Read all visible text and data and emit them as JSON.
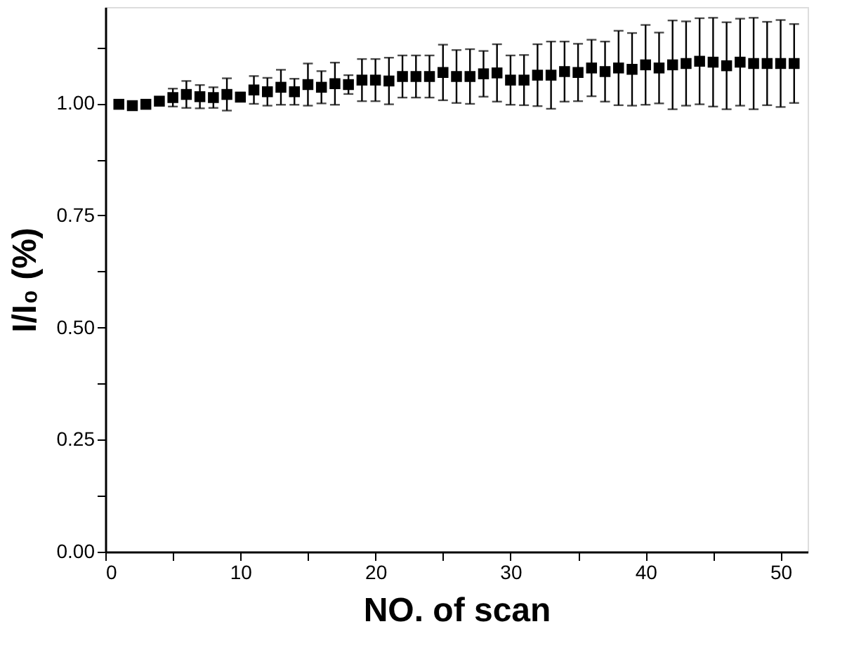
{
  "chart_data": {
    "type": "scatter",
    "xlabel": "NO. of scan",
    "ylabel": "I/I₀ (%)",
    "x": [
      1,
      2,
      3,
      4,
      5,
      6,
      7,
      8,
      9,
      10,
      11,
      12,
      13,
      14,
      15,
      16,
      17,
      18,
      19,
      20,
      21,
      22,
      23,
      24,
      25,
      26,
      27,
      28,
      29,
      30,
      31,
      32,
      33,
      34,
      35,
      36,
      37,
      38,
      39,
      40,
      41,
      42,
      43,
      44,
      45,
      46,
      47,
      48,
      49,
      50,
      51
    ],
    "values": [
      0.998,
      0.995,
      0.998,
      1.005,
      1.013,
      1.02,
      1.015,
      1.013,
      1.02,
      1.014,
      1.03,
      1.026,
      1.036,
      1.026,
      1.042,
      1.036,
      1.044,
      1.042,
      1.052,
      1.052,
      1.05,
      1.06,
      1.06,
      1.06,
      1.069,
      1.06,
      1.06,
      1.066,
      1.068,
      1.052,
      1.052,
      1.063,
      1.063,
      1.071,
      1.069,
      1.079,
      1.071,
      1.079,
      1.076,
      1.086,
      1.079,
      1.086,
      1.089,
      1.094,
      1.092,
      1.084,
      1.092,
      1.089,
      1.089,
      1.089,
      1.089
    ],
    "errors": [
      null,
      null,
      null,
      null,
      0.02,
      0.03,
      0.026,
      0.023,
      0.036,
      0.01,
      0.031,
      0.031,
      0.039,
      0.029,
      0.047,
      0.036,
      0.047,
      0.021,
      0.047,
      0.047,
      0.052,
      0.047,
      0.047,
      0.047,
      0.062,
      0.059,
      0.061,
      0.051,
      0.064,
      0.055,
      0.056,
      0.069,
      0.075,
      0.067,
      0.064,
      0.063,
      0.067,
      0.083,
      0.081,
      0.089,
      0.079,
      0.099,
      0.094,
      0.096,
      0.099,
      0.097,
      0.097,
      0.102,
      0.093,
      0.097,
      0.088
    ],
    "color": "#000000",
    "marker": "square",
    "xlim": [
      0,
      52
    ],
    "xticks": [
      0,
      {
        "value": 5,
        "label": null
      },
      10,
      {
        "value": 15,
        "label": null
      },
      20,
      {
        "value": 25,
        "label": null
      },
      30,
      {
        "value": 35,
        "label": null
      },
      40,
      {
        "value": 45,
        "label": null
      },
      50
    ],
    "ylim": [
      0,
      1.215
    ],
    "yticks": [
      {
        "value": 0,
        "label": "0.00"
      },
      {
        "value": 0.125,
        "label": null
      },
      {
        "value": 0.25,
        "label": "0.25"
      },
      {
        "value": 0.375,
        "label": null
      },
      {
        "value": 0.5,
        "label": "0.50"
      },
      {
        "value": 0.625,
        "label": null
      },
      {
        "value": 0.75,
        "label": "0.75"
      },
      {
        "value": 0.875,
        "label": null
      },
      {
        "value": 1,
        "label": "1.00"
      },
      {
        "value": 1.125,
        "label": null
      }
    ],
    "grid": false
  }
}
